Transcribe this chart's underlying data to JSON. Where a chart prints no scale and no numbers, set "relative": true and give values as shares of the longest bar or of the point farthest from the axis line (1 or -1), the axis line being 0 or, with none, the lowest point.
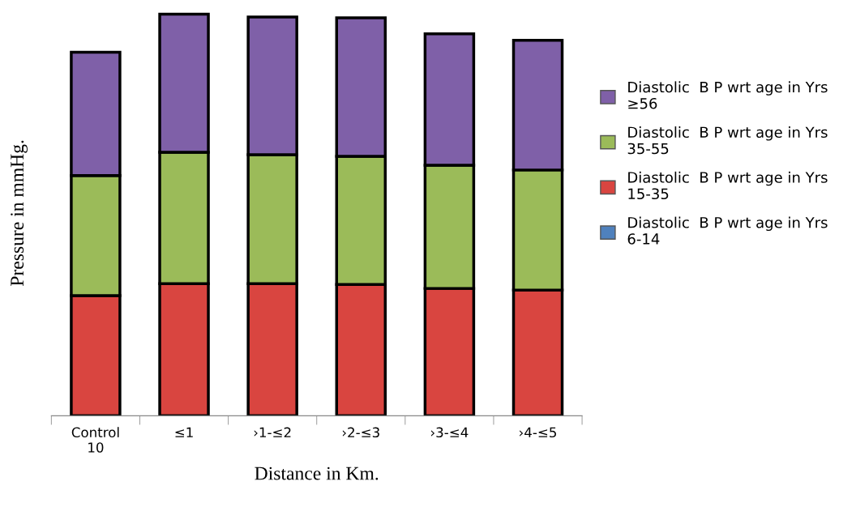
{
  "chart_data": {
    "type": "bar",
    "stacked": true,
    "relative": true,
    "xlabel": "Distance in Km.",
    "ylabel": "Pressure in mmHg.",
    "legend": "right",
    "grid": false,
    "categories": [
      "Control\n10",
      "≤1",
      "›1-≤2",
      "›2-≤3",
      "›3-≤4",
      "›4-≤5"
    ],
    "series": [
      {
        "name": "Diastolic  B P wrt age in Yrs\n6-14",
        "color": "#4f81bd",
        "values": [
          0,
          0,
          0,
          0,
          0,
          0
        ]
      },
      {
        "name": "Diastolic  B P wrt age in Yrs\n15-35",
        "color": "#d94540",
        "values": [
          0.299,
          0.329,
          0.329,
          0.327,
          0.317,
          0.313
        ]
      },
      {
        "name": "Diastolic  B P wrt age in Yrs\n35-55",
        "color": "#9bbb59",
        "values": [
          0.299,
          0.327,
          0.321,
          0.319,
          0.307,
          0.299
        ]
      },
      {
        "name": "Diastolic  B P wrt age in Yrs\n≥56",
        "color": "#7f60a8",
        "values": [
          0.307,
          0.344,
          0.343,
          0.345,
          0.327,
          0.323
        ]
      }
    ]
  }
}
